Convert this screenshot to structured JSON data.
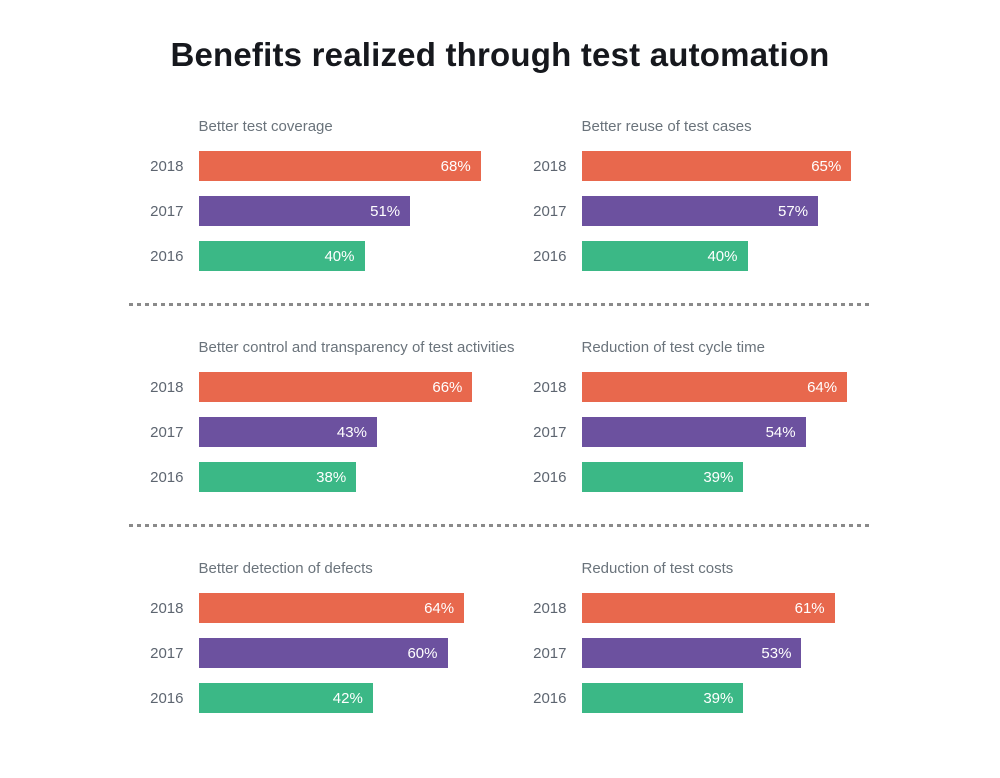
{
  "page": {
    "title": "Benefits realized through test automation"
  },
  "colors": {
    "2018": "#e8684d",
    "2017": "#6c519f",
    "2016": "#3bb886",
    "bar_value_text": "#ffffff",
    "heading_text": "#16181d",
    "chart_title_text": "#6a737b",
    "year_label_text": "#5d6570",
    "divider": "#8a8a8a",
    "background": "#ffffff"
  },
  "chart_data": [
    {
      "type": "bar",
      "orientation": "horizontal",
      "title": "Better test coverage",
      "categories": [
        "2018",
        "2017",
        "2016"
      ],
      "values": [
        68,
        51,
        40
      ],
      "labels": [
        "68%",
        "51%",
        "40%"
      ],
      "unit": "%",
      "xlim": [
        0,
        100
      ],
      "grid": false,
      "legend": "none",
      "value_labels": "inside-right"
    },
    {
      "type": "bar",
      "orientation": "horizontal",
      "title": "Better reuse of test cases",
      "categories": [
        "2018",
        "2017",
        "2016"
      ],
      "values": [
        65,
        57,
        40
      ],
      "labels": [
        "65%",
        "57%",
        "40%"
      ],
      "unit": "%",
      "xlim": [
        0,
        100
      ],
      "grid": false,
      "legend": "none",
      "value_labels": "inside-right"
    },
    {
      "type": "bar",
      "orientation": "horizontal",
      "title": "Better control and transparency of test activities",
      "categories": [
        "2018",
        "2017",
        "2016"
      ],
      "values": [
        66,
        43,
        38
      ],
      "labels": [
        "66%",
        "43%",
        "38%"
      ],
      "unit": "%",
      "xlim": [
        0,
        100
      ],
      "grid": false,
      "legend": "none",
      "value_labels": "inside-right"
    },
    {
      "type": "bar",
      "orientation": "horizontal",
      "title": "Reduction of test cycle time",
      "categories": [
        "2018",
        "2017",
        "2016"
      ],
      "values": [
        64,
        54,
        39
      ],
      "labels": [
        "64%",
        "54%",
        "39%"
      ],
      "unit": "%",
      "xlim": [
        0,
        100
      ],
      "grid": false,
      "legend": "none",
      "value_labels": "inside-right"
    },
    {
      "type": "bar",
      "orientation": "horizontal",
      "title": "Better detection of defects",
      "categories": [
        "2018",
        "2017",
        "2016"
      ],
      "values": [
        64,
        60,
        42
      ],
      "labels": [
        "64%",
        "60%",
        "42%"
      ],
      "unit": "%",
      "xlim": [
        0,
        100
      ],
      "grid": false,
      "legend": "none",
      "value_labels": "inside-right"
    },
    {
      "type": "bar",
      "orientation": "horizontal",
      "title": "Reduction of test costs",
      "categories": [
        "2018",
        "2017",
        "2016"
      ],
      "values": [
        61,
        53,
        39
      ],
      "labels": [
        "61%",
        "53%",
        "39%"
      ],
      "unit": "%",
      "xlim": [
        0,
        100
      ],
      "grid": false,
      "legend": "none",
      "value_labels": "inside-right"
    }
  ]
}
